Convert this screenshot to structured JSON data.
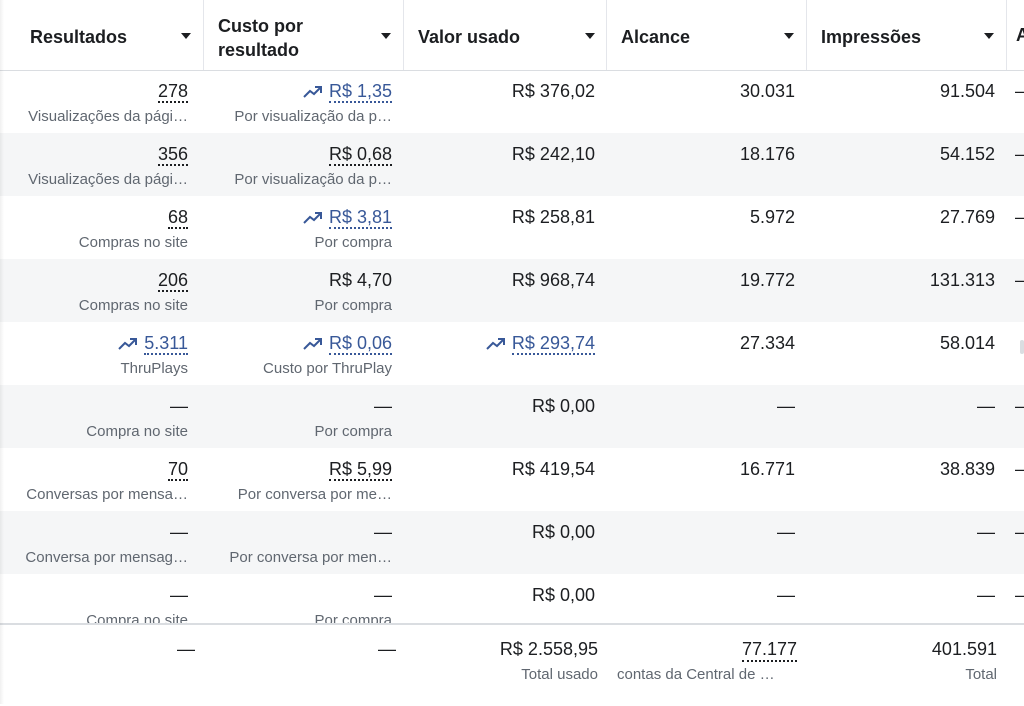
{
  "header": {
    "columns": [
      {
        "key": "resultados",
        "label": "Resultados"
      },
      {
        "key": "custo",
        "label_line1": "Custo por",
        "label_line2": "resultado"
      },
      {
        "key": "valor",
        "label": "Valor usado"
      },
      {
        "key": "alcance",
        "label": "Alcance"
      },
      {
        "key": "impressoes",
        "label": "Impressões"
      }
    ],
    "edge_label": "A"
  },
  "rows": [
    {
      "res": "278",
      "res_sub": "Visualizações da pági…",
      "custo": "R$ 1,35",
      "custo_sub": "Por visualização da p…",
      "valor": "R$ 376,02",
      "alcance": "30.031",
      "impressoes": "91.504",
      "edge": "–"
    },
    {
      "res": "356",
      "res_sub": "Visualizações da pági…",
      "custo": "R$ 0,68",
      "custo_sub": "Por visualização da p…",
      "valor": "R$ 242,10",
      "alcance": "18.176",
      "impressoes": "54.152",
      "edge": "–"
    },
    {
      "res": "68",
      "res_sub": "Compras no site",
      "custo": "R$ 3,81",
      "custo_sub": "Por compra",
      "valor": "R$ 258,81",
      "alcance": "5.972",
      "impressoes": "27.769",
      "edge": "–"
    },
    {
      "res": "206",
      "res_sub": "Compras no site",
      "custo": "R$ 4,70",
      "custo_sub": "Por compra",
      "valor": "R$ 968,74",
      "alcance": "19.772",
      "impressoes": "131.313",
      "edge": "–"
    },
    {
      "res": "5.311",
      "res_sub": "ThruPlays",
      "custo": "R$ 0,06",
      "custo_sub": "Custo por ThruPlay",
      "valor": "R$ 293,74",
      "alcance": "27.334",
      "impressoes": "58.014",
      "edge": ""
    },
    {
      "res": "—",
      "res_sub": "Compra no site",
      "custo": "—",
      "custo_sub": "Por compra",
      "valor": "R$ 0,00",
      "alcance": "—",
      "impressoes": "—",
      "edge": "–"
    },
    {
      "res": "70",
      "res_sub": "Conversas por mensa…",
      "custo": "R$ 5,99",
      "custo_sub": "Por conversa por me…",
      "valor": "R$ 419,54",
      "alcance": "16.771",
      "impressoes": "38.839",
      "edge": "–"
    },
    {
      "res": "—",
      "res_sub": "Conversa por mensag…",
      "custo": "—",
      "custo_sub": "Por conversa por men…",
      "valor": "R$ 0,00",
      "alcance": "—",
      "impressoes": "—",
      "edge": "–"
    },
    {
      "res": "—",
      "res_sub": "Compra no site",
      "custo": "—",
      "custo_sub": "Por compra",
      "valor": "R$ 0,00",
      "alcance": "—",
      "impressoes": "—",
      "edge": "–"
    }
  ],
  "totals": {
    "res": "—",
    "custo": "—",
    "valor": "R$ 2.558,95",
    "valor_sub": "Total usado",
    "alcance": "77.177",
    "alcance_sub": "contas da Central de …",
    "impressoes": "401.591",
    "impressoes_sub": "Total"
  },
  "colors": {
    "link": "#385898",
    "muted": "#606770",
    "text": "#1c1e21",
    "row_alt": "#f5f6f7"
  },
  "icons": {
    "trend": "trend-up-icon",
    "sort": "caret-down-icon"
  }
}
